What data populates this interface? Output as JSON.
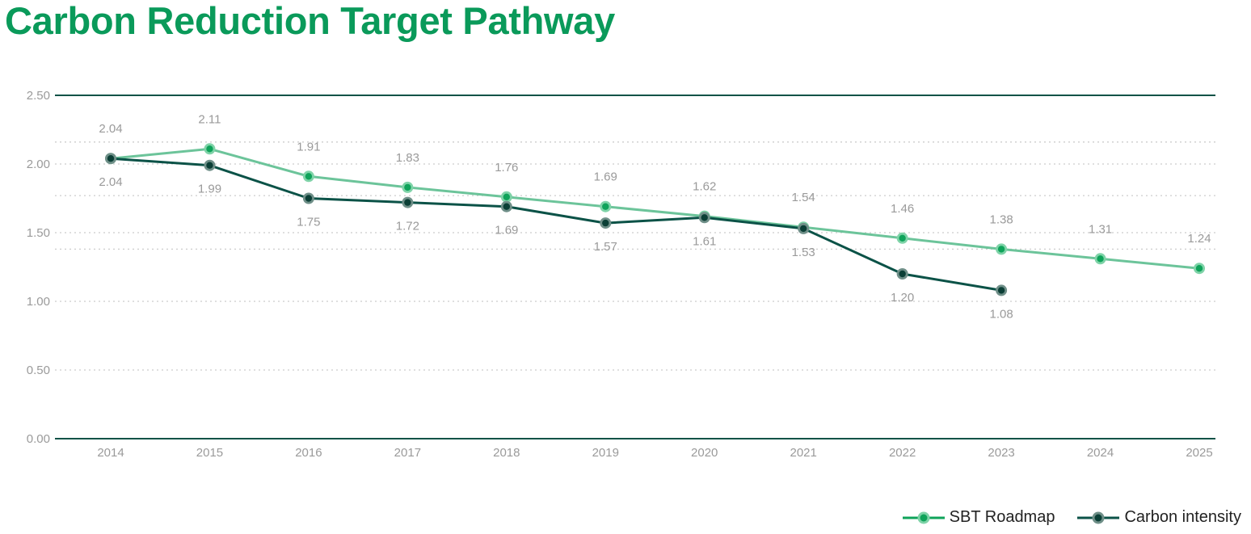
{
  "title": "Carbon Reduction Target Pathway",
  "colors": {
    "title": "#0a9a5a",
    "sbt_line": "#6cc49a",
    "sbt_marker": "#0fa35a",
    "sbt_ring": "#7fd3a8",
    "ci_line": "#0b5247",
    "ci_marker": "#0b3f36",
    "ci_ring": "#6f8f88",
    "axis_line": "#0b5247",
    "grid": "#cccccc"
  },
  "legend": {
    "sbt": "SBT Roadmap",
    "ci": "Carbon intensity"
  },
  "chart_data": {
    "type": "line",
    "title": "Carbon Reduction Target Pathway",
    "xlabel": "",
    "ylabel": "",
    "categories": [
      "2014",
      "2015",
      "2016",
      "2017",
      "2018",
      "2019",
      "2020",
      "2021",
      "2022",
      "2023",
      "2024",
      "2025"
    ],
    "ylim": [
      0,
      2.5
    ],
    "yticks": [
      "0.00",
      "0.50",
      "1.00",
      "1.50",
      "2.00",
      "2.50"
    ],
    "grid": "dotted horizontal",
    "legend_position": "bottom-right",
    "series": [
      {
        "name": "SBT Roadmap",
        "values": [
          2.04,
          2.11,
          1.91,
          1.83,
          1.76,
          1.69,
          1.62,
          1.54,
          1.46,
          1.38,
          1.31,
          1.24
        ],
        "labels": [
          "2.04",
          "2.11",
          "1.91",
          "1.83",
          "1.76",
          "1.69",
          "1.62",
          "1.54",
          "1.46",
          "1.38",
          "1.31",
          "1.24"
        ]
      },
      {
        "name": "Carbon intensity",
        "values": [
          2.04,
          1.99,
          1.75,
          1.72,
          1.69,
          1.57,
          1.61,
          1.53,
          1.2,
          1.08,
          null,
          null
        ],
        "labels": [
          "2.04",
          "1.99",
          "1.75",
          "1.72",
          "1.69",
          "1.57",
          "1.61",
          "1.53",
          "1.20",
          "1.08",
          "",
          ""
        ]
      }
    ]
  }
}
